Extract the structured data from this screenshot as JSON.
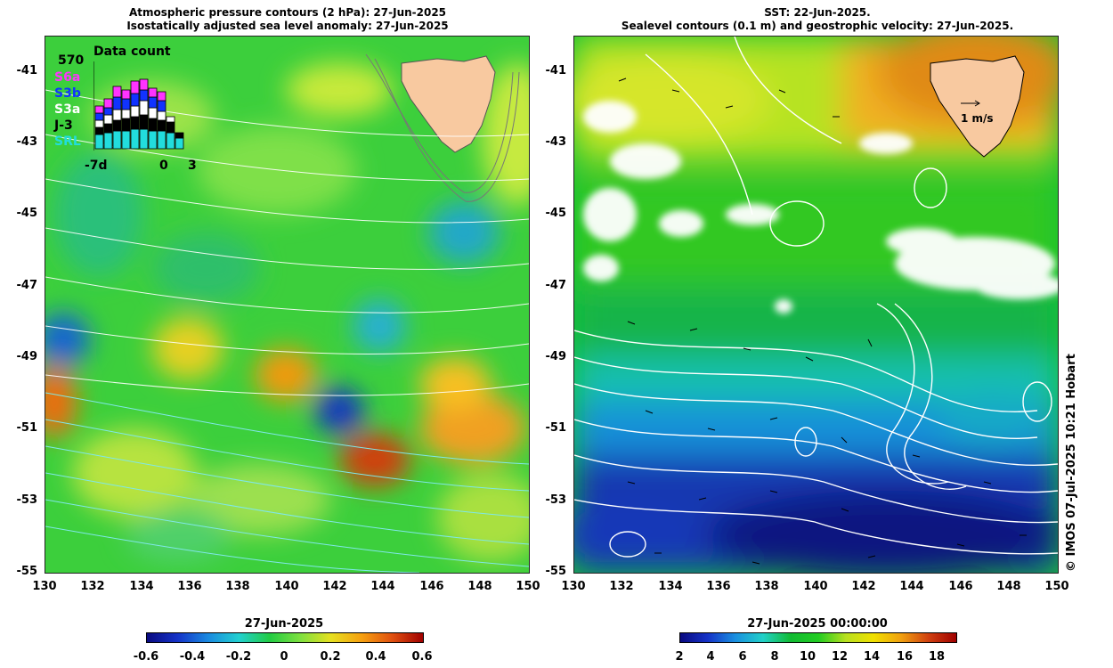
{
  "left_panel": {
    "title_line1": "Atmospheric pressure contours (2 hPa): 27-Jun-2025",
    "title_line2": "Isostatically adjusted sea level anomaly: 27-Jun-2025",
    "colorbar_title": "27-Jun-2025",
    "colorbar_ticks": [
      "-0.6",
      "-0.4",
      "-0.2",
      "0",
      "0.2",
      "0.4",
      "0.6"
    ],
    "colors": {
      "low": "#1a2a9a",
      "mid": "#22cc44",
      "high": "#b01000"
    }
  },
  "right_panel": {
    "title_line1": "SST: 22-Jun-2025.",
    "title_line2": "Sealevel contours (0.1 m) and geostrophic velocity: 27-Jun-2025.",
    "colorbar_title": "27-Jun-2025 00:00:00",
    "colorbar_ticks": [
      "2",
      "4",
      "6",
      "8",
      "10",
      "12",
      "14",
      "16",
      "18"
    ],
    "velocity_scale_label": "1 m/s",
    "colors": {
      "cold": "#0a1a8a",
      "mid": "#11bb33",
      "warm": "#cc4400"
    }
  },
  "axes": {
    "lat_ticks": [
      "-41",
      "-43",
      "-45",
      "-47",
      "-49",
      "-51",
      "-53",
      "-55"
    ],
    "lon_ticks": [
      "130",
      "132",
      "134",
      "136",
      "138",
      "140",
      "142",
      "144",
      "146",
      "148",
      "150"
    ]
  },
  "data_count": {
    "title": "Data count",
    "max_value": "570",
    "legend": [
      {
        "label": "S6a",
        "color": "#ff33ff"
      },
      {
        "label": "S3b",
        "color": "#1133ff"
      },
      {
        "label": "S3a",
        "color": "#ffffff"
      },
      {
        "label": "J-3",
        "color": "#000000"
      },
      {
        "label": "SRL",
        "color": "#22dddd"
      }
    ],
    "x_labels": [
      "-7d",
      "0",
      "3"
    ]
  },
  "credit": "© IMOS 07-Jul-2025 10:21 Hobart"
}
